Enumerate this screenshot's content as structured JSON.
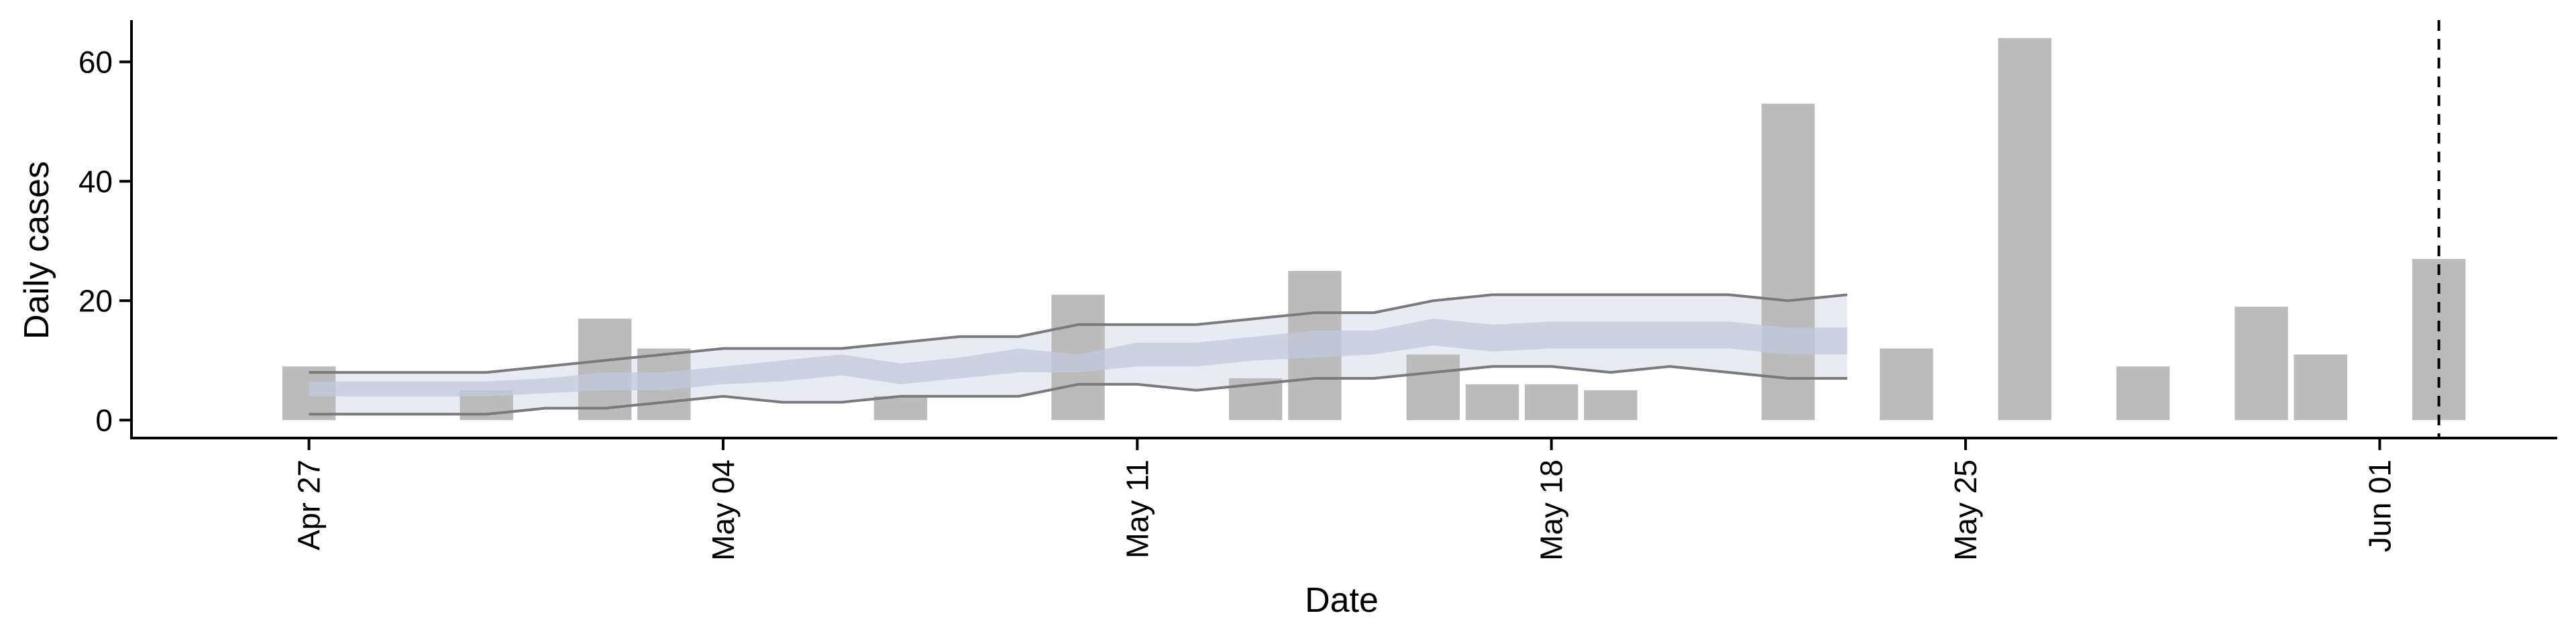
{
  "chart_data": {
    "type": "bar",
    "xlabel": "Date",
    "ylabel": "Daily cases",
    "x_ticks": [
      {
        "date": "2020-04-27",
        "label": "Apr 27"
      },
      {
        "date": "2020-05-04",
        "label": "May 04"
      },
      {
        "date": "2020-05-11",
        "label": "May 11"
      },
      {
        "date": "2020-05-18",
        "label": "May 18"
      },
      {
        "date": "2020-05-25",
        "label": "May 25"
      },
      {
        "date": "2020-06-01",
        "label": "Jun 01"
      }
    ],
    "xlim": [
      "2020-04-24",
      "2020-06-04"
    ],
    "y_ticks": [
      0,
      20,
      40,
      60
    ],
    "ylim": [
      -3,
      67
    ],
    "grid": false,
    "colors": {
      "bars": "#bbbbbb",
      "band": "#e9ebf2",
      "inner_band": "#c2c9dc",
      "bound_lines": "#7a7a7a",
      "axes": "#000000"
    },
    "series": [
      {
        "type": "bar",
        "x": [
          "2020-04-27",
          "2020-04-30",
          "2020-05-02",
          "2020-05-03",
          "2020-05-07",
          "2020-05-10",
          "2020-05-13",
          "2020-05-14",
          "2020-05-16",
          "2020-05-17",
          "2020-05-18",
          "2020-05-19",
          "2020-05-22",
          "2020-05-24",
          "2020-05-26",
          "2020-05-28",
          "2020-05-30",
          "2020-05-31",
          "2020-06-02"
        ],
        "values": [
          9,
          5,
          17,
          12,
          4,
          21,
          7,
          25,
          11,
          6,
          6,
          5,
          53,
          12,
          64,
          9,
          19,
          11,
          27
        ]
      },
      {
        "type": "area-band",
        "x": [
          "2020-04-27",
          "2020-04-28",
          "2020-04-29",
          "2020-04-30",
          "2020-05-01",
          "2020-05-02",
          "2020-05-03",
          "2020-05-04",
          "2020-05-05",
          "2020-05-06",
          "2020-05-07",
          "2020-05-08",
          "2020-05-09",
          "2020-05-10",
          "2020-05-11",
          "2020-05-12",
          "2020-05-13",
          "2020-05-14",
          "2020-05-15",
          "2020-05-16",
          "2020-05-17",
          "2020-05-18",
          "2020-05-19",
          "2020-05-20",
          "2020-05-21",
          "2020-05-22",
          "2020-05-23"
        ],
        "lower": [
          1,
          1,
          1,
          1,
          2,
          2,
          3,
          4,
          3,
          3,
          4,
          4,
          4,
          6,
          6,
          5,
          6,
          7,
          7,
          8,
          9,
          9,
          8,
          9,
          8,
          7,
          7
        ],
        "upper": [
          8,
          8,
          8,
          8,
          9,
          10,
          11,
          12,
          12,
          12,
          13,
          14,
          14,
          16,
          16,
          16,
          17,
          18,
          18,
          20,
          21,
          21,
          21,
          21,
          21,
          20,
          21
        ],
        "inner_lower": [
          4,
          4,
          4,
          4,
          4.5,
          5,
          5,
          6,
          6.5,
          7.5,
          6,
          7,
          8,
          8,
          9,
          9,
          10,
          10.5,
          11,
          12.5,
          11.5,
          12,
          12,
          12,
          12,
          11,
          11
        ],
        "inner_upper": [
          6.5,
          6.5,
          6.5,
          6.5,
          7,
          8,
          8,
          9,
          10,
          11,
          9.5,
          10.5,
          12,
          11,
          13,
          13,
          14,
          15,
          15,
          17,
          16,
          16.5,
          16.5,
          16.5,
          16.5,
          15.5,
          15.5
        ]
      }
    ],
    "vline": {
      "x": "2020-06-02",
      "style": "dashed"
    }
  }
}
